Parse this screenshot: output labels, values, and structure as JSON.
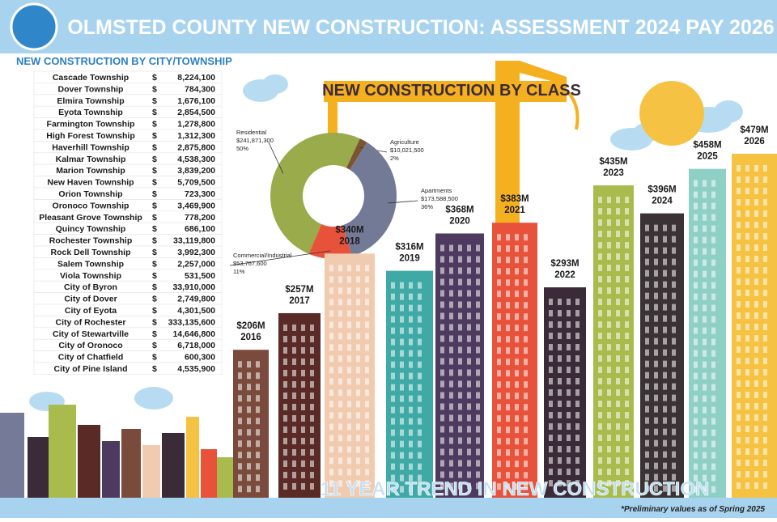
{
  "header": {
    "title": "OLMSTED COUNTY NEW CONSTRUCTION: ASSESSMENT 2024 PAY 2026"
  },
  "table": {
    "title": "NEW CONSTRUCTION BY CITY/TOWNSHIP",
    "currency": "$",
    "rows": [
      [
        "Cascade Township",
        "8,224,100"
      ],
      [
        "Dover Township",
        "784,300"
      ],
      [
        "Elmira Township",
        "1,676,100"
      ],
      [
        "Eyota Township",
        "2,854,500"
      ],
      [
        "Farmington Township",
        "1,278,800"
      ],
      [
        "High Forest Township",
        "1,312,300"
      ],
      [
        "Haverhill Township",
        "2,875,800"
      ],
      [
        "Kalmar Township",
        "4,538,300"
      ],
      [
        "Marion Township",
        "3,839,200"
      ],
      [
        "New Haven Township",
        "5,709,500"
      ],
      [
        "Orion Township",
        "723,300"
      ],
      [
        "Oronoco Township",
        "3,469,900"
      ],
      [
        "Pleasant Grove Township",
        "778,200"
      ],
      [
        "Quincy Township",
        "686,100"
      ],
      [
        "Rochester Township",
        "33,119,800"
      ],
      [
        "Rock Dell Township",
        "3,992,300"
      ],
      [
        "Salem Township",
        "2,257,000"
      ],
      [
        "Viola Township",
        "531,500"
      ],
      [
        "City of Byron",
        "33,910,000"
      ],
      [
        "City of Dover",
        "2,749,800"
      ],
      [
        "City of Eyota",
        "4,301,500"
      ],
      [
        "City of Rochester",
        "333,135,600"
      ],
      [
        "City of Stewartville",
        "14,646,800"
      ],
      [
        "City of Oronoco",
        "6,718,000"
      ],
      [
        "City of Chatfield",
        "600,300"
      ],
      [
        "City of Pine Island",
        "4,535,900"
      ]
    ]
  },
  "chart_data": [
    {
      "type": "pie",
      "title": "NEW CONSTRUCTION BY CLASS",
      "categories": [
        "Residential",
        "Agriculture",
        "Apartments",
        "Commercial/Industrial"
      ],
      "values": [
        50,
        2,
        36,
        11
      ],
      "value_labels": [
        "50%",
        "2%",
        "36%",
        "11%"
      ],
      "amount_labels": [
        "$241,871,300",
        "$10,021,500",
        "$173,588,500",
        "$53,767,600"
      ],
      "colors": [
        "#9aab4c",
        "#7a5530",
        "#737a96",
        "#e8523a"
      ]
    },
    {
      "type": "bar",
      "title": "11 YEAR TREND IN NEW CONSTRUCTION",
      "categories": [
        "2016",
        "2017",
        "2018",
        "2019",
        "2020",
        "2021",
        "2022",
        "2023",
        "2024",
        "2025",
        "2026"
      ],
      "values": [
        206,
        257,
        340,
        316,
        368,
        383,
        293,
        435,
        396,
        458,
        479
      ],
      "value_labels": [
        "$206M",
        "$257M",
        "$340M",
        "$316M",
        "$368M",
        "$383M",
        "$293M",
        "$435M",
        "$396M",
        "$458M",
        "$479M"
      ],
      "colors": [
        "#7a4a3c",
        "#5a2a26",
        "#f1cbb0",
        "#3fa9a6",
        "#4e3a5e",
        "#e8523a",
        "#3b2b38",
        "#a8bb4c",
        "#3a3234",
        "#8fd0c6",
        "#f5c242"
      ]
    }
  ],
  "footnote": "*Preliminary values as of Spring 2025"
}
